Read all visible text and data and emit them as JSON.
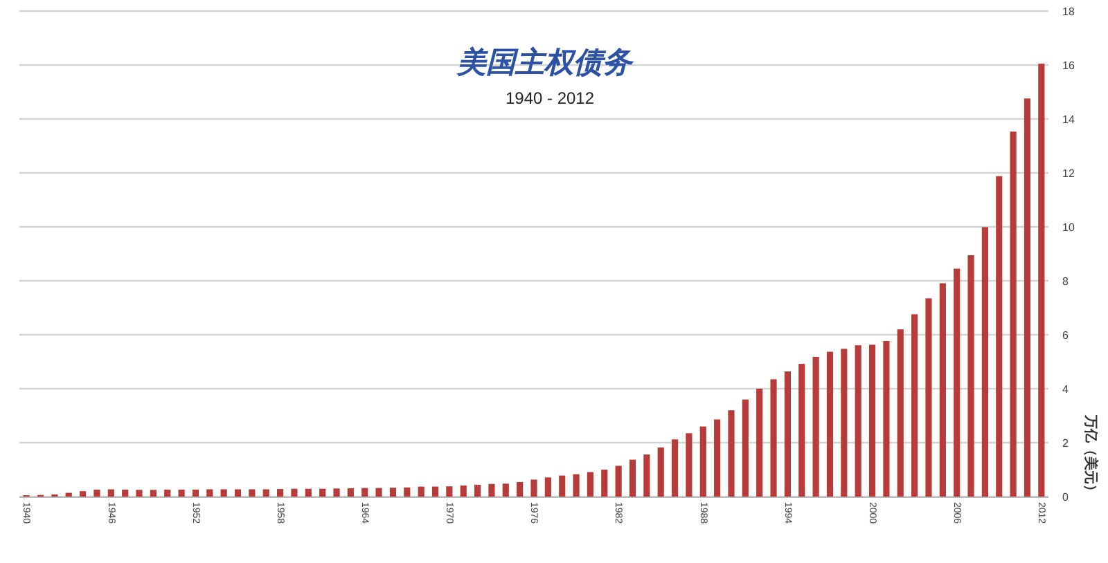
{
  "chart_data": {
    "type": "bar",
    "title": "美国主权债务",
    "subtitle": "1940 - 2012",
    "ylabel": "万亿（美元）",
    "categories": [
      "1940",
      null,
      null,
      null,
      null,
      null,
      "1946",
      null,
      null,
      null,
      null,
      null,
      "1952",
      null,
      null,
      null,
      null,
      null,
      "1958",
      null,
      null,
      null,
      null,
      null,
      "1964",
      null,
      null,
      null,
      null,
      null,
      "1970",
      null,
      null,
      null,
      null,
      null,
      "1976",
      null,
      null,
      null,
      null,
      null,
      "1982",
      null,
      null,
      null,
      null,
      null,
      "1988",
      null,
      null,
      null,
      null,
      null,
      "1994",
      null,
      null,
      null,
      null,
      null,
      "2000",
      null,
      null,
      null,
      null,
      null,
      "2006",
      null,
      null,
      null,
      null,
      null,
      "2012"
    ],
    "values": [
      0.05,
      0.06,
      0.08,
      0.14,
      0.2,
      0.26,
      0.27,
      0.26,
      0.25,
      0.25,
      0.26,
      0.26,
      0.26,
      0.27,
      0.27,
      0.27,
      0.27,
      0.27,
      0.28,
      0.29,
      0.29,
      0.29,
      0.3,
      0.31,
      0.32,
      0.32,
      0.33,
      0.34,
      0.37,
      0.37,
      0.38,
      0.41,
      0.44,
      0.47,
      0.48,
      0.54,
      0.63,
      0.71,
      0.78,
      0.83,
      0.91,
      1.0,
      1.14,
      1.37,
      1.56,
      1.82,
      2.12,
      2.35,
      2.6,
      2.86,
      3.2,
      3.6,
      4.0,
      4.35,
      4.64,
      4.92,
      5.18,
      5.37,
      5.48,
      5.61,
      5.63,
      5.77,
      6.2,
      6.76,
      7.35,
      7.91,
      8.45,
      8.95,
      9.99,
      11.88,
      13.53,
      14.76,
      16.05
    ],
    "color": "#b83b3b",
    "ylim": [
      0,
      18
    ],
    "yticks": [
      0,
      2,
      4,
      6,
      8,
      10,
      12,
      14,
      16,
      18
    ],
    "grid": "y"
  }
}
